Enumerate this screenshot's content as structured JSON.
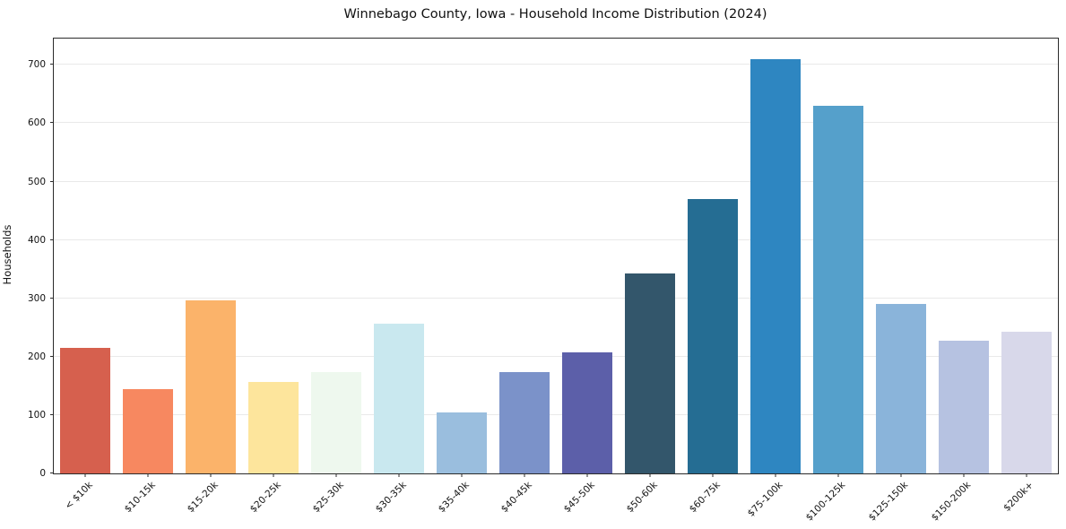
{
  "chart_data": {
    "type": "bar",
    "title": "Winnebago County, Iowa - Household Income Distribution (2024)",
    "xlabel": "",
    "ylabel": "Households",
    "categories": [
      "< $10k",
      "$10-15k",
      "$15-20k",
      "$20-25k",
      "$25-30k",
      "$30-35k",
      "$35-40k",
      "$40-45k",
      "$45-50k",
      "$50-60k",
      "$60-75k",
      "$75-100k",
      "$100-125k",
      "$125-150k",
      "$150-200k",
      "$200k+"
    ],
    "values": [
      215,
      145,
      296,
      157,
      174,
      257,
      104,
      174,
      207,
      342,
      470,
      710,
      630,
      290,
      227,
      243
    ],
    "bar_colors": [
      "#d6604e",
      "#f78860",
      "#fbb36a",
      "#fde59c",
      "#eef8ee",
      "#c9e8ef",
      "#9abede",
      "#7b92c9",
      "#5c5fa9",
      "#33566b",
      "#256d93",
      "#2e86c1",
      "#55a0cb",
      "#8ab4da",
      "#b6c2e1",
      "#d8d8ea"
    ],
    "ylim": [
      0,
      745
    ],
    "yticks": [
      0,
      100,
      200,
      300,
      400,
      500,
      600,
      700
    ],
    "grid": true,
    "legend": false,
    "bar_width_fraction": 0.8
  }
}
